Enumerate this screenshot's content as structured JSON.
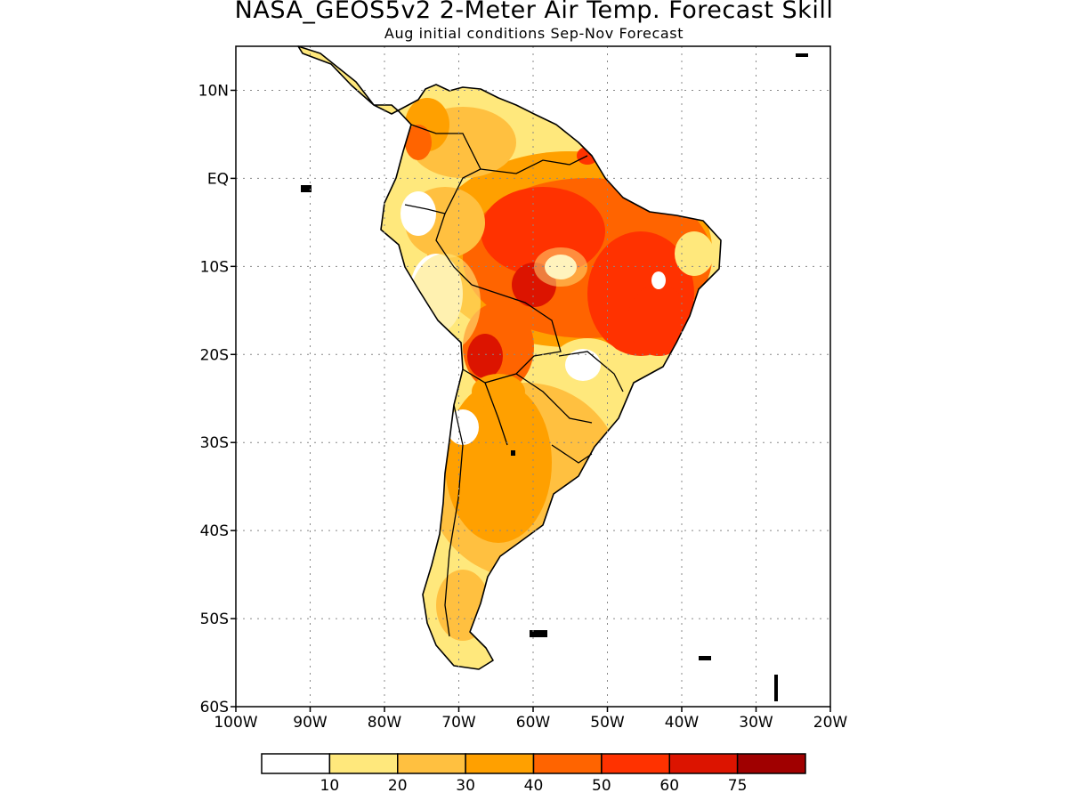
{
  "title": "NASA_GEOS5v2 2-Meter Air Temp. Forecast Skill",
  "subtitle": "Aug initial conditions  Sep-Nov Forecast",
  "map": {
    "region": "South America",
    "lon_range": [
      -100,
      -20
    ],
    "lat_range": [
      -60,
      15
    ],
    "gridlines": "dotted",
    "y_ticks": [
      {
        "label": "10N",
        "lat": 10
      },
      {
        "label": "EQ",
        "lat": 0
      },
      {
        "label": "10S",
        "lat": -10
      },
      {
        "label": "20S",
        "lat": -20
      },
      {
        "label": "30S",
        "lat": -30
      },
      {
        "label": "40S",
        "lat": -40
      },
      {
        "label": "50S",
        "lat": -50
      },
      {
        "label": "60S",
        "lat": -60
      }
    ],
    "x_ticks": [
      {
        "label": "100W",
        "lon": -100
      },
      {
        "label": "90W",
        "lon": -90
      },
      {
        "label": "80W",
        "lon": -80
      },
      {
        "label": "70W",
        "lon": -70
      },
      {
        "label": "60W",
        "lon": -60
      },
      {
        "label": "50W",
        "lon": -50
      },
      {
        "label": "40W",
        "lon": -40
      },
      {
        "label": "30W",
        "lon": -30
      },
      {
        "label": "20W",
        "lon": -20
      }
    ]
  },
  "colorbar": {
    "colors": [
      "#ffffff",
      "#ffe87c",
      "#ffc040",
      "#ffa000",
      "#ff6400",
      "#ff3200",
      "#dc1400",
      "#a00000"
    ],
    "labels": [
      "10",
      "20",
      "30",
      "40",
      "50",
      "60",
      "75"
    ]
  }
}
